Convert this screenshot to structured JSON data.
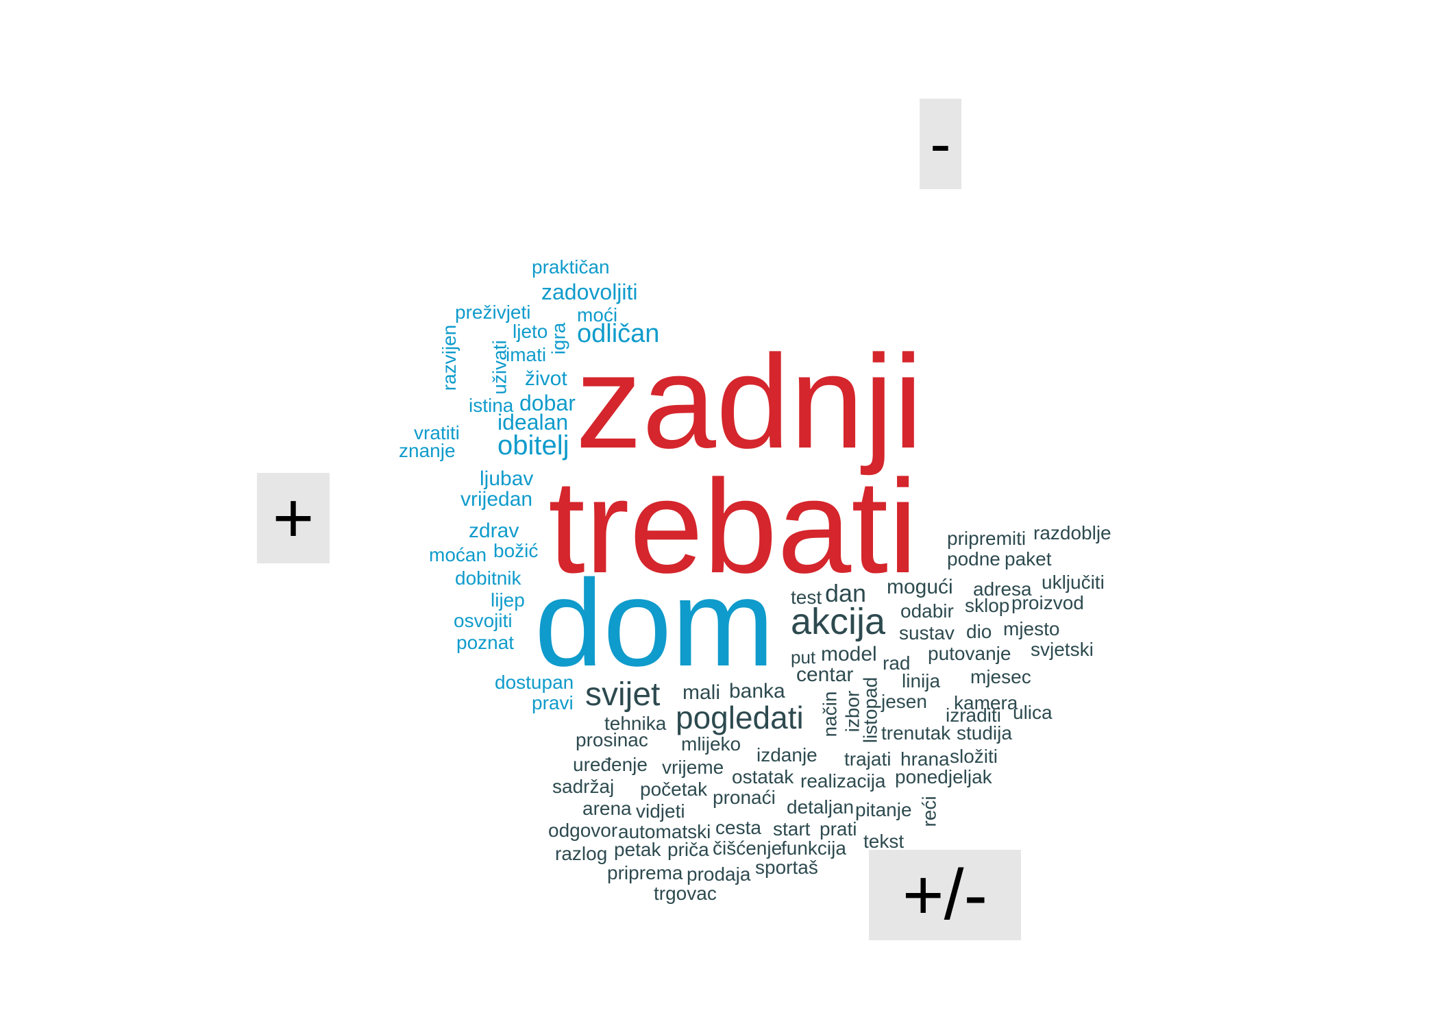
{
  "colors": {
    "positive": "#0f9bcb",
    "negative": "#d4262c",
    "neutral": "#2d4a4f",
    "label_bg": "#e6e6e6",
    "label_text": "#000000"
  },
  "labels": {
    "minus": "-",
    "plus": "+",
    "plusminus": "+/-"
  },
  "words": {
    "negative": [
      "zadnji",
      "trebati"
    ],
    "positive": [
      "dom",
      "praktičan",
      "zadovoljiti",
      "preživjeti",
      "moći",
      "ljeto",
      "odličan",
      "igra",
      "razvijen",
      "uživati",
      "imati",
      "život",
      "istina",
      "dobar",
      "idealan",
      "vratiti",
      "znanje",
      "obitelj",
      "ljubav",
      "vrijedan",
      "zdrav",
      "moćan",
      "božić",
      "dobitnik",
      "lijep",
      "osvojiti",
      "poznat",
      "dostupan",
      "pravi"
    ],
    "neutral": [
      "akcija",
      "svijet",
      "pogledati",
      "dan",
      "test",
      "mogući",
      "odabir",
      "sustav",
      "model",
      "put",
      "centar",
      "rad",
      "mali",
      "banka",
      "način",
      "izbor",
      "listopad",
      "jesen",
      "tehnika",
      "prosinac",
      "mlijeko",
      "uređenje",
      "vrijeme",
      "izdanje",
      "trajati",
      "hrana",
      "složiti",
      "ostatak",
      "realizacija",
      "ponedjeljak",
      "sadržaj",
      "početak",
      "pronaći",
      "arena",
      "vidjeti",
      "detaljan",
      "pitanje",
      "reći",
      "odgovor",
      "automatski",
      "cesta",
      "start",
      "prati",
      "tekst",
      "razlog",
      "petak",
      "priča",
      "čišćenje",
      "funkcija",
      "priprema",
      "prodaja",
      "sportaš",
      "trgovac",
      "pripremiti",
      "razdoblje",
      "podne",
      "paket",
      "adresa",
      "uključiti",
      "sklop",
      "proizvod",
      "dio",
      "mjesto",
      "svjetski",
      "putovanje",
      "linija",
      "mjesec",
      "kamera",
      "izraditi",
      "ulica",
      "trenutak",
      "studija"
    ]
  }
}
